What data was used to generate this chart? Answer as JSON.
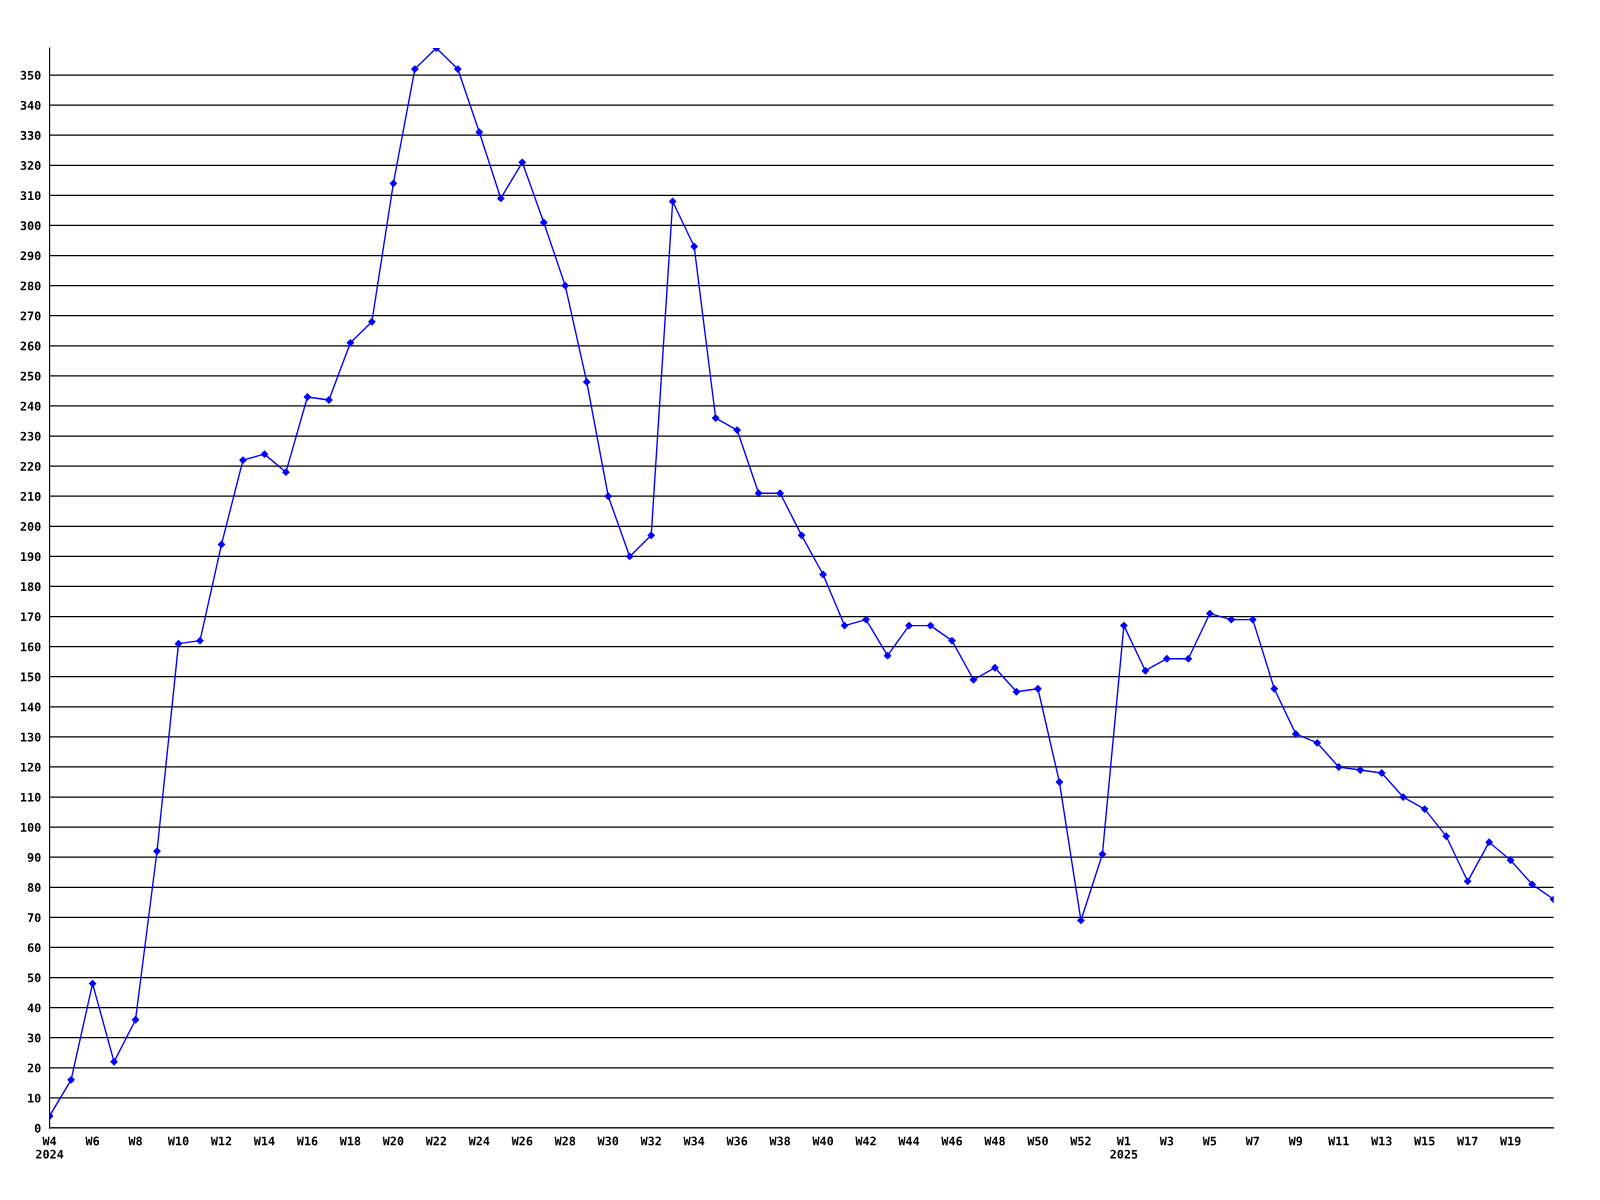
{
  "chart_data": {
    "type": "line",
    "categories": [
      "W4\n2024",
      null,
      "W6",
      null,
      "W8",
      null,
      "W10",
      null,
      "W12",
      null,
      "W14",
      null,
      "W16",
      null,
      "W18",
      null,
      "W20",
      null,
      "W22",
      null,
      "W24",
      null,
      "W26",
      null,
      "W28",
      null,
      "W30",
      null,
      "W32",
      null,
      "W34",
      null,
      "W36",
      null,
      "W38",
      null,
      "W40",
      null,
      "W42",
      null,
      "W44",
      null,
      "W46",
      null,
      "W48",
      null,
      "W50",
      null,
      "W52",
      null,
      "W1\n2025",
      null,
      "W3",
      null,
      "W5",
      null,
      "W7",
      null,
      "W9",
      null,
      "W11",
      null,
      "W13",
      null,
      "W15",
      null,
      "W17",
      null,
      "W19",
      null,
      null
    ],
    "series": [
      {
        "color": "#0000ff",
        "values": [
          4,
          16,
          48,
          22,
          36,
          92,
          161,
          162,
          194,
          222,
          224,
          218,
          243,
          242,
          261,
          268,
          314,
          352,
          359,
          352,
          331,
          309,
          321,
          301,
          280,
          248,
          210,
          190,
          197,
          308,
          293,
          236,
          232,
          211,
          211,
          197,
          184,
          167,
          169,
          157,
          167,
          167,
          162,
          149,
          153,
          145,
          146,
          115,
          69,
          91,
          167,
          152,
          156,
          156,
          171,
          169,
          169,
          146,
          131,
          128,
          120,
          119,
          118,
          110,
          106,
          97,
          82,
          95,
          89,
          81,
          76
        ]
      }
    ],
    "ylim": [
      0,
      359
    ],
    "yticks": [
      0,
      10,
      20,
      30,
      40,
      50,
      60,
      70,
      80,
      90,
      100,
      110,
      120,
      130,
      140,
      150,
      160,
      170,
      180,
      190,
      200,
      210,
      220,
      230,
      240,
      250,
      260,
      270,
      280,
      290,
      300,
      310,
      320,
      330,
      340,
      350
    ],
    "grid": "y",
    "marker": "diamond",
    "line_style": "solid",
    "legend": false
  }
}
